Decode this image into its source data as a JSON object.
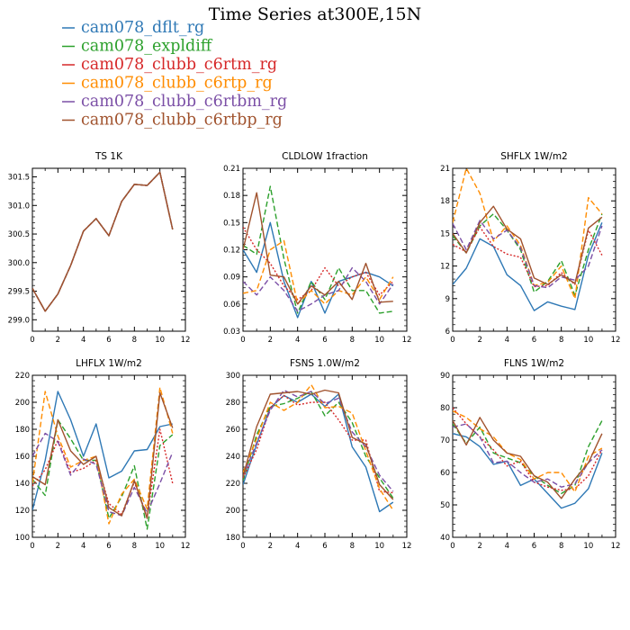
{
  "figure_title": "Time Series at300E,15N",
  "legend": [
    {
      "label": "cam078_dflt_rg",
      "color": "#2E78B5",
      "dash": "solid"
    },
    {
      "label": "cam078_expldiff",
      "color": "#2CA02C",
      "dash": "dashed"
    },
    {
      "label": "cam078_clubb_c6rtm_rg",
      "color": "#D62728",
      "dash": "dotted"
    },
    {
      "label": "cam078_clubb_c6rtp_rg",
      "color": "#FF8C00",
      "dash": "dashed"
    },
    {
      "label": "cam078_clubb_c6rtbm_rg",
      "color": "#7B4FA6",
      "dash": "dashed"
    },
    {
      "label": "cam078_clubb_c6rtbp_rg",
      "color": "#A0522D",
      "dash": "solid"
    }
  ],
  "chart_data": [
    {
      "type": "line",
      "title": "TS   1K",
      "x": [
        0,
        1,
        2,
        3,
        4,
        5,
        6,
        7,
        8,
        9,
        10,
        11
      ],
      "xlim": [
        0,
        12
      ],
      "xticks": [
        0,
        2,
        4,
        6,
        8,
        10,
        12
      ],
      "ylim": [
        298.8,
        301.65
      ],
      "yticks": [
        299.0,
        299.5,
        300.0,
        300.5,
        301.0,
        301.5
      ],
      "ytick_labels": [
        "299.0",
        "299.5",
        "300.0",
        "300.5",
        "301.0",
        "301.5"
      ],
      "series": [
        {
          "values": [
            299.55,
            299.15,
            299.45,
            299.95,
            300.55,
            300.77,
            300.47,
            301.07,
            301.37,
            301.35,
            301.58,
            300.58
          ]
        },
        {
          "values": [
            299.55,
            299.15,
            299.45,
            299.95,
            300.55,
            300.77,
            300.47,
            301.07,
            301.37,
            301.35,
            301.58,
            300.58
          ]
        },
        {
          "values": [
            299.55,
            299.15,
            299.45,
            299.95,
            300.55,
            300.77,
            300.47,
            301.07,
            301.37,
            301.35,
            301.58,
            300.58
          ]
        },
        {
          "values": [
            299.55,
            299.15,
            299.45,
            299.95,
            300.55,
            300.77,
            300.47,
            301.07,
            301.37,
            301.35,
            301.58,
            300.58
          ]
        },
        {
          "values": [
            299.55,
            299.15,
            299.45,
            299.95,
            300.55,
            300.77,
            300.47,
            301.07,
            301.37,
            301.35,
            301.58,
            300.58
          ]
        },
        {
          "values": [
            299.55,
            299.15,
            299.45,
            299.95,
            300.55,
            300.77,
            300.47,
            301.07,
            301.37,
            301.35,
            301.58,
            300.58
          ]
        }
      ]
    },
    {
      "type": "line",
      "title": "CLDLOW   1fraction",
      "x": [
        0,
        1,
        2,
        3,
        4,
        5,
        6,
        7,
        8,
        9,
        10,
        11
      ],
      "xlim": [
        0,
        12
      ],
      "xticks": [
        0,
        2,
        4,
        6,
        8,
        10,
        12
      ],
      "ylim": [
        0.03,
        0.21
      ],
      "yticks": [
        0.03,
        0.06,
        0.09,
        0.12,
        0.15,
        0.18,
        0.21
      ],
      "ytick_labels": [
        "0.03",
        "0.06",
        "0.09",
        "0.12",
        "0.15",
        "0.18",
        "0.21"
      ],
      "series": [
        {
          "values": [
            0.12,
            0.095,
            0.15,
            0.085,
            0.045,
            0.085,
            0.05,
            0.085,
            0.09,
            0.095,
            0.09,
            0.08
          ]
        },
        {
          "values": [
            0.125,
            0.115,
            0.19,
            0.11,
            0.05,
            0.085,
            0.065,
            0.1,
            0.075,
            0.075,
            0.05,
            0.052
          ]
        },
        {
          "values": [
            0.145,
            0.12,
            0.105,
            0.08,
            0.065,
            0.075,
            0.1,
            0.08,
            0.09,
            0.095,
            0.07,
            0.085
          ]
        },
        {
          "values": [
            0.072,
            0.075,
            0.12,
            0.13,
            0.06,
            0.075,
            0.06,
            0.075,
            0.07,
            0.09,
            0.065,
            0.09
          ]
        },
        {
          "values": [
            0.085,
            0.07,
            0.09,
            0.075,
            0.052,
            0.06,
            0.07,
            0.075,
            0.1,
            0.085,
            0.06,
            0.082
          ]
        },
        {
          "values": [
            0.12,
            0.183,
            0.092,
            0.09,
            0.06,
            0.08,
            0.07,
            0.085,
            0.065,
            0.105,
            0.062,
            0.063
          ]
        }
      ]
    },
    {
      "type": "line",
      "title": "SHFLX   1W/m2",
      "x": [
        0,
        1,
        2,
        3,
        4,
        5,
        6,
        7,
        8,
        9,
        10,
        11
      ],
      "xlim": [
        0,
        12
      ],
      "xticks": [
        0,
        2,
        4,
        6,
        8,
        10,
        12
      ],
      "ylim": [
        6,
        21
      ],
      "yticks": [
        6,
        9,
        12,
        15,
        18,
        21
      ],
      "ytick_labels": [
        "6",
        "9",
        "12",
        "15",
        "18",
        "21"
      ],
      "series": [
        {
          "values": [
            10.3,
            11.8,
            14.5,
            13.8,
            11.2,
            10.2,
            7.9,
            8.7,
            8.3,
            8.0,
            13.0,
            16.0
          ]
        },
        {
          "values": [
            14.8,
            13.2,
            15.7,
            16.8,
            15.3,
            13.5,
            9.6,
            10.6,
            12.5,
            9.3,
            13.5,
            16.8
          ]
        },
        {
          "values": [
            14.0,
            13.3,
            15.6,
            13.8,
            13.1,
            12.8,
            10.1,
            10.2,
            11.4,
            10.3,
            15.3,
            13.0
          ]
        },
        {
          "values": [
            16.0,
            21.0,
            18.7,
            14.3,
            15.7,
            13.9,
            10.2,
            10.5,
            12.0,
            9.0,
            18.3,
            16.8
          ]
        },
        {
          "values": [
            15.9,
            13.5,
            16.2,
            14.5,
            15.3,
            13.7,
            10.2,
            10.0,
            11.0,
            10.7,
            12.0,
            15.7
          ]
        },
        {
          "values": [
            15.0,
            13.2,
            16.0,
            17.5,
            15.4,
            14.5,
            10.9,
            10.3,
            11.2,
            10.4,
            15.5,
            16.5
          ]
        }
      ]
    },
    {
      "type": "line",
      "title": "LHFLX   1W/m2",
      "x": [
        0,
        1,
        2,
        3,
        4,
        5,
        6,
        7,
        8,
        9,
        10,
        11
      ],
      "xlim": [
        0,
        12
      ],
      "xticks": [
        0,
        2,
        4,
        6,
        8,
        10,
        12
      ],
      "ylim": [
        100,
        220
      ],
      "yticks": [
        100,
        120,
        140,
        160,
        180,
        200,
        220
      ],
      "ytick_labels": [
        "100",
        "120",
        "140",
        "160",
        "180",
        "200",
        "220"
      ],
      "series": [
        {
          "values": [
            120,
            157,
            208,
            187,
            160,
            184,
            144,
            149,
            164,
            165,
            182,
            184
          ]
        },
        {
          "values": [
            143,
            131,
            187,
            173,
            157,
            157,
            114,
            130,
            153,
            106,
            168,
            176
          ]
        },
        {
          "values": [
            138,
            150,
            172,
            148,
            151,
            157,
            125,
            117,
            141,
            115,
            180,
            140
          ]
        },
        {
          "values": [
            140,
            208,
            175,
            152,
            157,
            160,
            110,
            132,
            143,
            121,
            211,
            177
          ]
        },
        {
          "values": [
            160,
            177,
            171,
            146,
            158,
            154,
            119,
            116,
            137,
            118,
            140,
            163
          ]
        },
        {
          "values": [
            145,
            139,
            187,
            164,
            154,
            160,
            122,
            116,
            142,
            114,
            207,
            181
          ]
        }
      ]
    },
    {
      "type": "line",
      "title": "FSNS   1.0W/m2",
      "x": [
        0,
        1,
        2,
        3,
        4,
        5,
        6,
        7,
        8,
        9,
        10,
        11
      ],
      "xlim": [
        0,
        12
      ],
      "xticks": [
        0,
        2,
        4,
        6,
        8,
        10,
        12
      ],
      "ylim": [
        180,
        300
      ],
      "yticks": [
        180,
        200,
        220,
        240,
        260,
        280,
        300
      ],
      "ytick_labels": [
        "180",
        "200",
        "220",
        "240",
        "260",
        "280",
        "300"
      ],
      "series": [
        {
          "values": [
            219,
            249,
            276,
            285,
            280,
            286,
            277,
            286,
            247,
            232,
            199,
            206
          ]
        },
        {
          "values": [
            222,
            256,
            277,
            279,
            283,
            288,
            270,
            280,
            265,
            240,
            224,
            209
          ]
        },
        {
          "values": [
            224,
            245,
            276,
            285,
            278,
            280,
            280,
            267,
            252,
            252,
            214,
            213
          ]
        },
        {
          "values": [
            228,
            253,
            280,
            274,
            280,
            293,
            276,
            277,
            272,
            244,
            216,
            200
          ]
        },
        {
          "values": [
            225,
            250,
            274,
            289,
            284,
            288,
            279,
            283,
            258,
            247,
            226,
            214
          ]
        },
        {
          "values": [
            225,
            262,
            286,
            287,
            288,
            286,
            289,
            287,
            254,
            249,
            219,
            208
          ]
        }
      ]
    },
    {
      "type": "line",
      "title": "FLNS   1W/m2",
      "x": [
        0,
        1,
        2,
        3,
        4,
        5,
        6,
        7,
        8,
        9,
        10,
        11
      ],
      "xlim": [
        0,
        12
      ],
      "xticks": [
        0,
        2,
        4,
        6,
        8,
        10,
        12
      ],
      "ylim": [
        40,
        90
      ],
      "yticks": [
        40,
        50,
        60,
        70,
        80,
        90
      ],
      "ytick_labels": [
        "40",
        "50",
        "60",
        "70",
        "80",
        "90"
      ],
      "series": [
        {
          "values": [
            72.0,
            71.0,
            68.0,
            62.5,
            63.5,
            56.0,
            58.0,
            53.5,
            49.0,
            50.5,
            55.0,
            66.0
          ]
        },
        {
          "values": [
            75.0,
            69.0,
            74.0,
            66.0,
            64.5,
            63.0,
            59.0,
            56.0,
            53.5,
            56.0,
            68.0,
            76.0
          ]
        },
        {
          "values": [
            80.0,
            75.0,
            71.0,
            67.0,
            62.0,
            63.5,
            57.0,
            55.5,
            54.5,
            55.0,
            59.0,
            67.0
          ]
        },
        {
          "values": [
            79.0,
            77.0,
            73.5,
            71.0,
            66.0,
            64.0,
            58.0,
            60.0,
            60.0,
            54.0,
            65.0,
            67.5
          ]
        },
        {
          "values": [
            74.0,
            75.0,
            71.0,
            63.0,
            63.5,
            60.0,
            57.0,
            58.0,
            55.5,
            56.5,
            63.0,
            67.0
          ]
        },
        {
          "values": [
            76.0,
            68.5,
            77.0,
            70.0,
            66.0,
            65.0,
            59.0,
            57.0,
            52.0,
            58.0,
            63.0,
            72.0
          ]
        }
      ]
    }
  ]
}
